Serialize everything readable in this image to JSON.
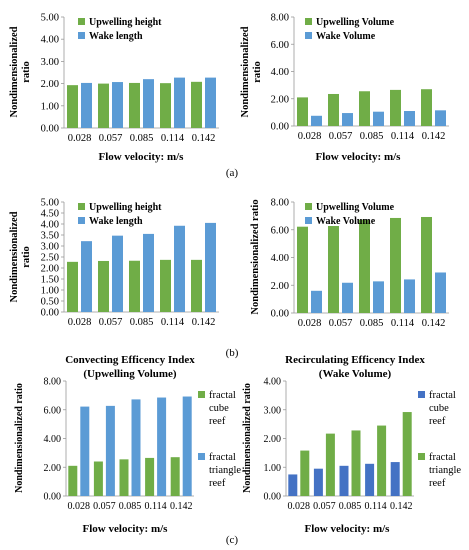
{
  "colors": {
    "green": "#70ad47",
    "blue": "#5b9bd5",
    "darkblue": "#4472c4"
  },
  "panel_labels": [
    "(a)",
    "(b)",
    "(c)"
  ],
  "chart_data": [
    {
      "type": "bar",
      "categories": [
        "0.028",
        "0.057",
        "0.085",
        "0.114",
        "0.142"
      ],
      "series": [
        {
          "name": "Upwelling height",
          "color": "#70ad47",
          "values": [
            1.93,
            2.0,
            2.03,
            2.02,
            2.08
          ]
        },
        {
          "name": "Wake length",
          "color": "#5b9bd5",
          "values": [
            2.03,
            2.07,
            2.2,
            2.27,
            2.27
          ]
        }
      ],
      "ylabel": "Nondimensionalized\nratio",
      "xlabel": "Flow velocity: m/s",
      "ylim": [
        0,
        5
      ],
      "yticks": [
        "0.00",
        "1.00",
        "2.00",
        "3.00",
        "4.00",
        "5.00"
      ],
      "title": "",
      "legend": "top-left"
    },
    {
      "type": "bar",
      "categories": [
        "0.028",
        "0.057",
        "0.085",
        "0.114",
        "0.142"
      ],
      "series": [
        {
          "name": "Upwelling Volume",
          "color": "#70ad47",
          "values": [
            2.1,
            2.35,
            2.55,
            2.65,
            2.7
          ]
        },
        {
          "name": "Wake Volume",
          "color": "#5b9bd5",
          "values": [
            0.75,
            0.95,
            1.05,
            1.1,
            1.15
          ]
        }
      ],
      "ylabel": "Nondimensionalized\nratio",
      "xlabel": "Flow velocity: m/s",
      "ylim": [
        0,
        8
      ],
      "yticks": [
        "0.00",
        "2.00",
        "4.00",
        "6.00",
        "8.00"
      ],
      "title": "",
      "legend": "top-center"
    },
    {
      "type": "bar",
      "categories": [
        "0.028",
        "0.057",
        "0.085",
        "0.114",
        "0.142"
      ],
      "series": [
        {
          "name": "Upwelling height",
          "color": "#70ad47",
          "values": [
            2.28,
            2.32,
            2.33,
            2.37,
            2.37
          ]
        },
        {
          "name": "Wake length",
          "color": "#5b9bd5",
          "values": [
            3.22,
            3.47,
            3.55,
            3.92,
            4.05
          ]
        }
      ],
      "ylabel": "Nondimensionalized\nratio",
      "xlabel": "",
      "ylim": [
        0,
        5
      ],
      "yticks": [
        "0.00",
        "0.50",
        "1.00",
        "1.50",
        "2.00",
        "2.50",
        "3.00",
        "3.50",
        "4.00",
        "4.50",
        "5.00"
      ],
      "title": "",
      "legend": "top-left"
    },
    {
      "type": "bar",
      "categories": [
        "0.028",
        "0.057",
        "0.085",
        "0.114",
        "0.142"
      ],
      "series": [
        {
          "name": "Upwelling Volume",
          "color": "#70ad47",
          "values": [
            6.22,
            6.27,
            6.72,
            6.85,
            6.92
          ]
        },
        {
          "name": "Wake Volume",
          "color": "#5b9bd5",
          "values": [
            1.6,
            2.18,
            2.28,
            2.42,
            2.92
          ]
        }
      ],
      "ylabel": "Nondimensionalized ratio",
      "xlabel": "",
      "ylim": [
        0,
        8
      ],
      "yticks": [
        "0.00",
        "2.00",
        "4.00",
        "6.00",
        "8.00"
      ],
      "title": "",
      "legend": "top-center"
    },
    {
      "type": "bar",
      "categories": [
        "0.028",
        "0.057",
        "0.085",
        "0.114",
        "0.142"
      ],
      "series": [
        {
          "name": "fractal cube reef",
          "color": "#70ad47",
          "values": [
            2.1,
            2.4,
            2.55,
            2.65,
            2.7
          ]
        },
        {
          "name": "fractal triangle reef",
          "color": "#5b9bd5",
          "values": [
            6.22,
            6.27,
            6.72,
            6.85,
            6.92
          ]
        }
      ],
      "title": "Convecting Efficency Index\n(Upwelling Volume)",
      "ylabel": "Nondimensionalized ratio",
      "xlabel": "Flow velocity: m/s",
      "ylim": [
        0,
        8
      ],
      "yticks": [
        "0.00",
        "2.00",
        "4.00",
        "6.00",
        "8.00"
      ],
      "legend": "right"
    },
    {
      "type": "bar",
      "categories": [
        "0.028",
        "0.057",
        "0.085",
        "0.114",
        "0.142"
      ],
      "series": [
        {
          "name": "fractal cube reef",
          "color": "#4472c4",
          "values": [
            0.75,
            0.95,
            1.05,
            1.12,
            1.18
          ]
        },
        {
          "name": "fractal triangle reef",
          "color": "#70ad47",
          "values": [
            1.58,
            2.17,
            2.28,
            2.45,
            2.92
          ]
        }
      ],
      "title": "Recirculating Efficency Index\n(Wake Volume)",
      "ylabel": "Nondimensionalized ratio",
      "xlabel": "Flow velocity: m/s",
      "ylim": [
        0,
        4
      ],
      "yticks": [
        "0.00",
        "1.00",
        "2.00",
        "3.00",
        "4.00"
      ],
      "legend": "right"
    }
  ]
}
